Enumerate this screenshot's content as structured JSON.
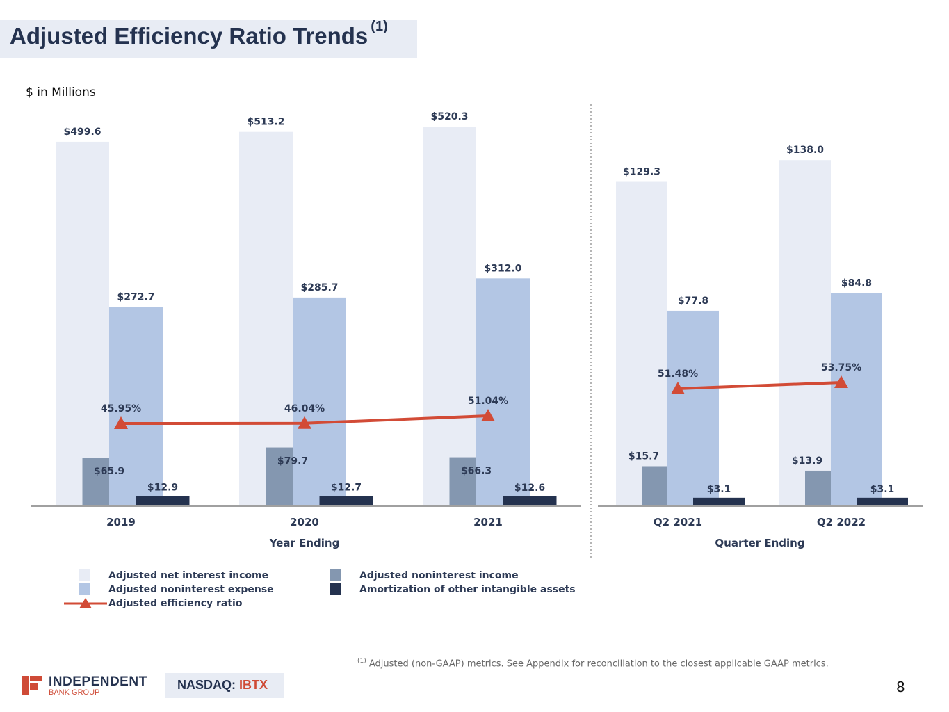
{
  "header": {
    "title": "Adjusted Efficiency Ratio Trends",
    "title_superscript": "(1)",
    "units": "$ in Millions"
  },
  "colors": {
    "net_interest_income": "#e8ecf5",
    "noninterest_expense": "#b3c6e4",
    "noninterest_income": "#8497b0",
    "amortization": "#24324f",
    "efficiency_ratio": "#d24b36",
    "brand_red": "#cf4b37",
    "brand_navy": "#24324f"
  },
  "chart_data": [
    {
      "type": "bar",
      "title": "Year Ending",
      "xlabel": "Year Ending",
      "categories": [
        "2019",
        "2020",
        "2021"
      ],
      "series": [
        {
          "name": "Adjusted net interest income",
          "values": [
            499.6,
            513.2,
            520.3
          ],
          "labels": [
            "$499.6",
            "$513.2",
            "$520.3"
          ]
        },
        {
          "name": "Adjusted noninterest income",
          "values": [
            65.9,
            79.7,
            66.3
          ],
          "labels": [
            "$65.9",
            "$79.7",
            "$66.3"
          ]
        },
        {
          "name": "Adjusted noninterest expense",
          "values": [
            272.7,
            285.7,
            312.0
          ],
          "labels": [
            "$272.7",
            "$285.7",
            "$312.0"
          ]
        },
        {
          "name": "Amortization of other intangible assets",
          "values": [
            12.9,
            12.7,
            12.6
          ],
          "labels": [
            "$12.9",
            "$12.7",
            "$12.6"
          ]
        },
        {
          "name": "Adjusted efficiency ratio",
          "type": "line",
          "values": [
            45.95,
            46.04,
            51.04
          ],
          "labels": [
            "45.95%",
            "46.04%",
            "51.04%"
          ]
        }
      ],
      "grid": false
    },
    {
      "type": "bar",
      "title": "Quarter Ending",
      "xlabel": "Quarter Ending",
      "categories": [
        "Q2 2021",
        "Q2 2022"
      ],
      "series": [
        {
          "name": "Adjusted net interest income",
          "values": [
            129.3,
            138.0
          ],
          "labels": [
            "$129.3",
            "$138.0"
          ]
        },
        {
          "name": "Adjusted noninterest income",
          "values": [
            15.7,
            13.9
          ],
          "labels": [
            "$15.7",
            "$13.9"
          ]
        },
        {
          "name": "Adjusted noninterest expense",
          "values": [
            77.8,
            84.8
          ],
          "labels": [
            "$77.8",
            "$84.8"
          ]
        },
        {
          "name": "Amortization of other intangible assets",
          "values": [
            3.1,
            3.1
          ],
          "labels": [
            "$3.1",
            "$3.1"
          ]
        },
        {
          "name": "Adjusted efficiency ratio",
          "type": "line",
          "values": [
            51.48,
            53.75
          ],
          "labels": [
            "51.48%",
            "53.75%"
          ]
        }
      ],
      "grid": false
    }
  ],
  "legend": {
    "placement": "bottom-left",
    "col1": [
      {
        "label": "Adjusted net interest income",
        "key": "net_interest_income"
      },
      {
        "label": "Adjusted noninterest expense",
        "key": "noninterest_expense"
      },
      {
        "label": "Adjusted efficiency ratio",
        "key": "efficiency_ratio"
      }
    ],
    "col2": [
      {
        "label": "Adjusted noninterest income",
        "key": "noninterest_income"
      },
      {
        "label": "Amortization of other intangible assets",
        "key": "amortization"
      }
    ]
  },
  "footer": {
    "footnote_marker": "(1)",
    "footnote": "Adjusted (non-GAAP) metrics. See Appendix for reconciliation to the closest applicable GAAP metrics.",
    "logo_name": "INDEPENDENT",
    "logo_sub": "BANK GROUP",
    "ticker_prefix": "NASDAQ:",
    "ticker_symbol": "IBTX",
    "page_number": "8"
  }
}
